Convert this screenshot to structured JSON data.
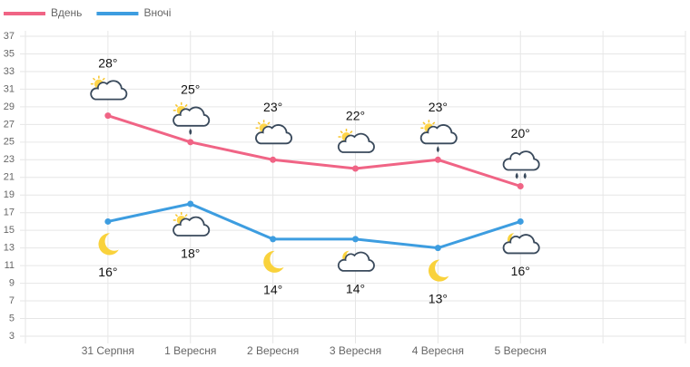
{
  "chart_data": {
    "type": "line",
    "categories": [
      "31 Серпня",
      "1 Вересня",
      "2 Вересня",
      "3 Вересня",
      "4 Вересня",
      "5 Вересня"
    ],
    "series": [
      {
        "name": "Вдень",
        "color": "#f06485",
        "values": [
          28,
          25,
          23,
          22,
          23,
          20
        ],
        "value_labels": [
          "28°",
          "25°",
          "23°",
          "22°",
          "23°",
          "20°"
        ],
        "icons": [
          "sun-cloud",
          "sun-cloud-rain",
          "sun-cloud",
          "sun-cloud",
          "sun-cloud-rain",
          "cloud-rain"
        ]
      },
      {
        "name": "Вночі",
        "color": "#3d9de0",
        "values": [
          16,
          18,
          14,
          14,
          13,
          16
        ],
        "value_labels": [
          "16°",
          "18°",
          "14°",
          "14°",
          "13°",
          "16°"
        ],
        "icons": [
          "moon",
          "sun-cloud",
          "moon",
          "moon-cloud",
          "moon",
          "moon-cloud"
        ]
      }
    ],
    "ylim": [
      3,
      37
    ],
    "yticks": [
      3,
      5,
      7,
      9,
      11,
      13,
      15,
      17,
      19,
      21,
      23,
      25,
      27,
      29,
      31,
      33,
      35,
      37
    ],
    "grid": true,
    "legend": "top-left"
  }
}
